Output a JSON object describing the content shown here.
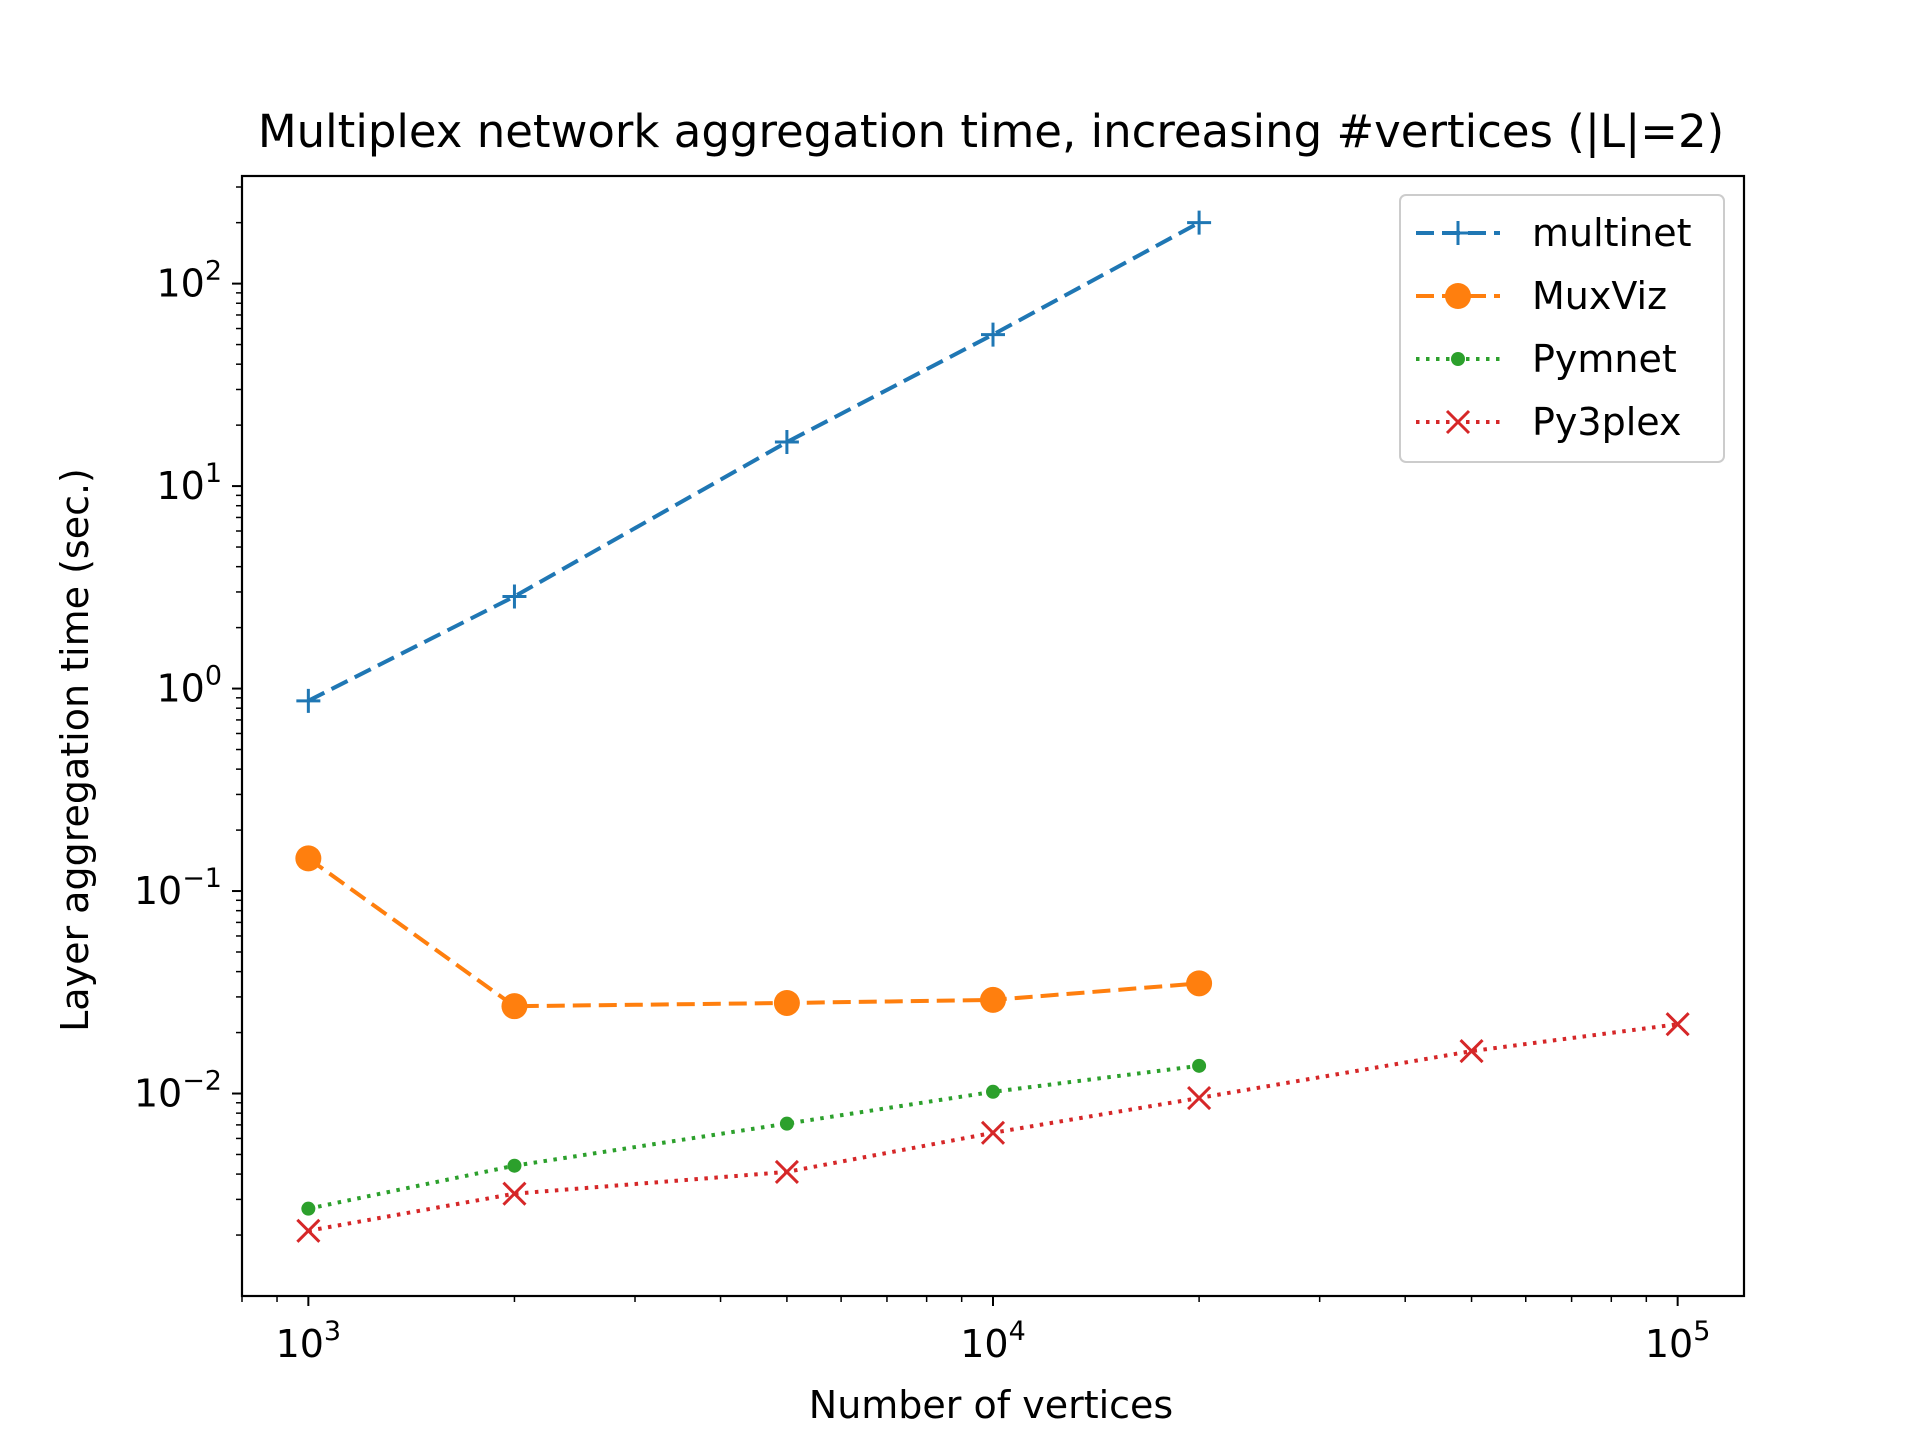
{
  "chart_data": {
    "type": "line",
    "title": "Multiplex network aggregation time, increasing #vertices (|L|=2)",
    "xlabel": "Number of vertices",
    "ylabel": "Layer aggregation time (sec.)",
    "xscale": "log",
    "yscale": "log",
    "xlim": [
      800,
      125000
    ],
    "ylim": [
      0.001,
      340
    ],
    "x_ticks": [
      {
        "value": 1000,
        "mantissa": "10",
        "exp": "3"
      },
      {
        "value": 10000,
        "mantissa": "10",
        "exp": "4"
      },
      {
        "value": 100000,
        "mantissa": "10",
        "exp": "5"
      }
    ],
    "y_ticks": [
      {
        "value": 0.01,
        "mantissa": "10",
        "exp": "−2"
      },
      {
        "value": 0.1,
        "mantissa": "10",
        "exp": "−1"
      },
      {
        "value": 1,
        "mantissa": "10",
        "exp": "0"
      },
      {
        "value": 10,
        "mantissa": "10",
        "exp": "1"
      },
      {
        "value": 100,
        "mantissa": "10",
        "exp": "2"
      }
    ],
    "grid": false,
    "legend_position": "top-right",
    "series": [
      {
        "name": "multinet",
        "color": "#1f77b4",
        "linestyle": "dashed",
        "marker": "plus",
        "x": [
          1000,
          2000,
          5000,
          10000,
          20000
        ],
        "y": [
          0.87,
          2.85,
          16.5,
          56,
          200
        ]
      },
      {
        "name": "MuxViz",
        "color": "#ff7f0e",
        "linestyle": "dashed",
        "marker": "circle",
        "x": [
          1000,
          2000,
          5000,
          10000,
          20000
        ],
        "y": [
          0.145,
          0.027,
          0.028,
          0.029,
          0.035
        ]
      },
      {
        "name": "Pymnet",
        "color": "#2ca02c",
        "linestyle": "dotted",
        "marker": "dot",
        "x": [
          1000,
          2000,
          5000,
          10000,
          20000
        ],
        "y": [
          0.0027,
          0.0044,
          0.0071,
          0.0102,
          0.0137
        ]
      },
      {
        "name": "Py3plex",
        "color": "#d62728",
        "linestyle": "dotted",
        "marker": "x",
        "x": [
          1000,
          2000,
          5000,
          10000,
          20000,
          50000,
          100000
        ],
        "y": [
          0.0021,
          0.0032,
          0.0041,
          0.0064,
          0.0095,
          0.0162,
          0.022
        ]
      }
    ]
  }
}
